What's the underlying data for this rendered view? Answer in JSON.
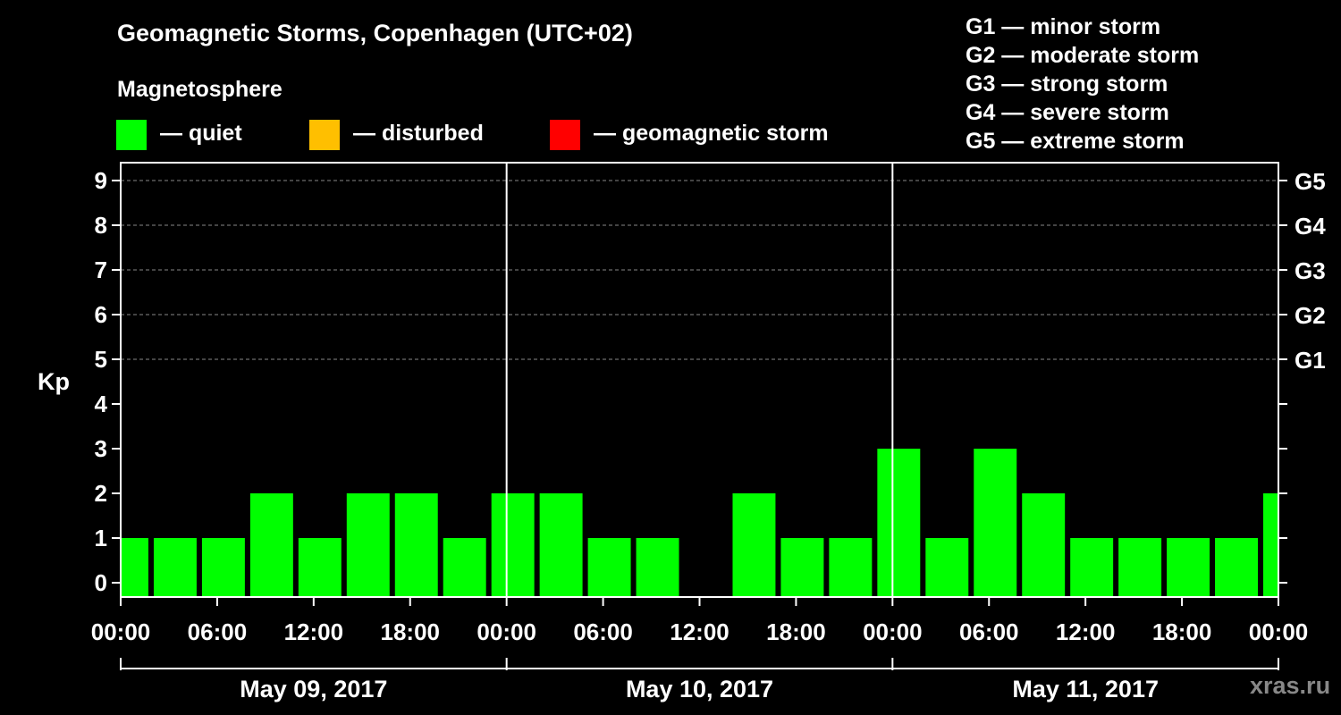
{
  "title": "Geomagnetic Storms, Copenhagen (UTC+02)",
  "subtitle": "Magnetosphere",
  "legend": [
    {
      "label": "— quiet",
      "color": "#00ff00"
    },
    {
      "label": "— disturbed",
      "color": "#ffbf00"
    },
    {
      "label": "— geomagnetic storm",
      "color": "#ff0000"
    }
  ],
  "storm_scale": [
    "G1 — minor storm",
    "G2 — moderate storm",
    "G3 — strong storm",
    "G4 — severe storm",
    "G5 — extreme storm"
  ],
  "watermark": "xras.ru",
  "chart_data": {
    "type": "bar",
    "title": "Geomagnetic Storms, Copenhagen (UTC+02)",
    "ylabel": "Kp",
    "ylim": [
      0,
      9
    ],
    "yticks": [
      "0",
      "1",
      "2",
      "3",
      "4",
      "5",
      "6",
      "7",
      "8",
      "9"
    ],
    "right_axis": [
      {
        "kp": 5,
        "label": "G1"
      },
      {
        "kp": 6,
        "label": "G2"
      },
      {
        "kp": 7,
        "label": "G3"
      },
      {
        "kp": 8,
        "label": "G4"
      },
      {
        "kp": 9,
        "label": "G5"
      }
    ],
    "grid": "dashed horizontal at Kp 5 to 9",
    "xlim_hours": [
      0,
      72
    ],
    "x_tick_labels": [
      "00:00",
      "06:00",
      "12:00",
      "18:00",
      "00:00",
      "06:00",
      "12:00",
      "18:00",
      "00:00",
      "06:00",
      "12:00",
      "18:00",
      "00:00"
    ],
    "day_labels": [
      "May 09, 2017",
      "May 10, 2017",
      "May 11, 2017"
    ],
    "day_separators_hours": [
      24,
      48
    ],
    "bar_interval_hours": 3,
    "bar_start_hours": [
      -1,
      2,
      5,
      8,
      11,
      14,
      17,
      20,
      23,
      26,
      29,
      32,
      35,
      38,
      41,
      44,
      47,
      50,
      53,
      56,
      59,
      62,
      65,
      68,
      71
    ],
    "values": [
      1,
      1,
      1,
      2,
      1,
      2,
      2,
      1,
      2,
      2,
      1,
      1,
      0,
      2,
      1,
      1,
      3,
      1,
      3,
      2,
      1,
      1,
      1,
      1,
      2
    ],
    "bar_color": "#00ff00"
  }
}
